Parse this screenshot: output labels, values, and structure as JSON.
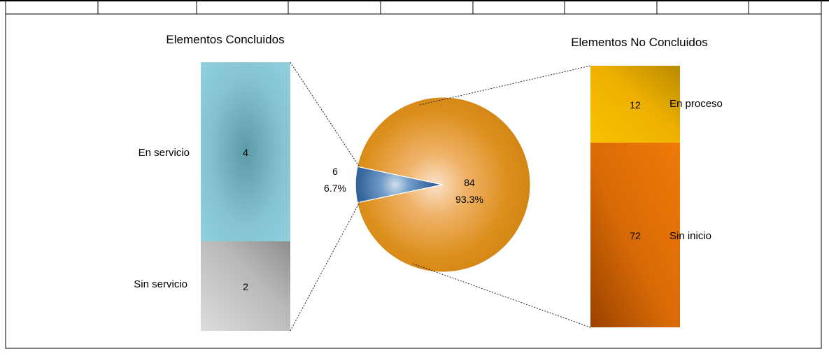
{
  "chart_data": {
    "type": "bar-of-pie",
    "pie": {
      "slices": [
        {
          "key": "concluidos",
          "value": 6,
          "percent": "6.7%",
          "color": "#2e5a8e"
        },
        {
          "key": "no_concluidos",
          "value": 84,
          "percent": "93.3%",
          "color": "#d98a12"
        }
      ]
    },
    "left_bar": {
      "title": "Elementos Concluidos",
      "segments": [
        {
          "label": "En servicio",
          "value": 4,
          "color": "#8fcfdc"
        },
        {
          "label": "Sin servicio",
          "value": 2,
          "color": "#bdbdbd"
        }
      ]
    },
    "right_bar": {
      "title": "Elementos No Concluidos",
      "segments": [
        {
          "label": "En proceso",
          "value": 12,
          "color": "#f4b400"
        },
        {
          "label": "Sin inicio",
          "value": 72,
          "color": "#e8700a"
        }
      ]
    }
  }
}
